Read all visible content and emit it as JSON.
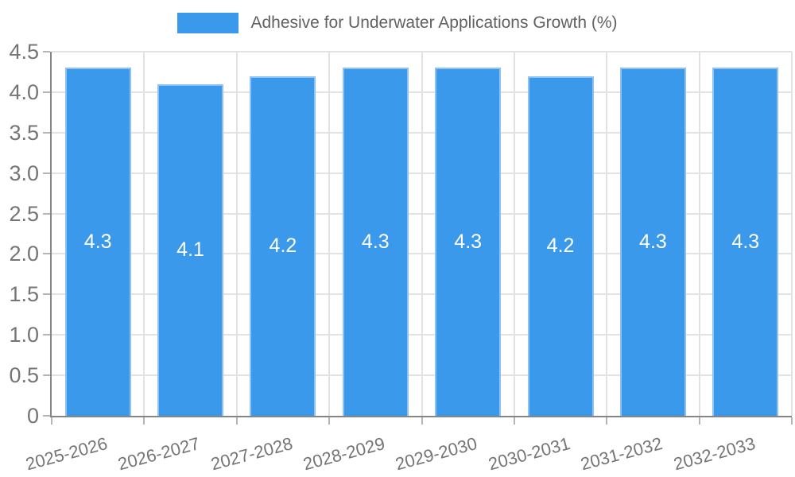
{
  "chart_data": {
    "type": "bar",
    "title": "Adhesive for Underwater Applications Growth (%)",
    "series_name": "Adhesive for Underwater Applications Growth (%)",
    "categories": [
      "2025-2026",
      "2026-2027",
      "2027-2028",
      "2028-2029",
      "2029-2030",
      "2030-2031",
      "2031-2032",
      "2032-2033"
    ],
    "values": [
      4.3,
      4.1,
      4.2,
      4.3,
      4.3,
      4.2,
      4.3,
      4.3
    ],
    "value_labels": [
      "4.3",
      "4.1",
      "4.2",
      "4.3",
      "4.3",
      "4.2",
      "4.3",
      "4.3"
    ],
    "xlabel": "",
    "ylabel": "",
    "ylim": [
      0,
      4.5
    ],
    "y_tick_step": 0.5,
    "y_ticks": [
      "0",
      "0.5",
      "1.0",
      "1.5",
      "2.0",
      "2.5",
      "3.0",
      "3.5",
      "4.0",
      "4.5"
    ],
    "grid": true,
    "legend_position": "top",
    "colors": {
      "bar_fill": "#3a99eb",
      "bar_border": "#8fc2f2",
      "grid": "#e2e2e2",
      "axis": "#858585",
      "tick": "#b5b5b5",
      "tick_label": "#757575",
      "title_text": "#616161",
      "value_text": "#ffffff",
      "background": "#ffffff"
    }
  }
}
